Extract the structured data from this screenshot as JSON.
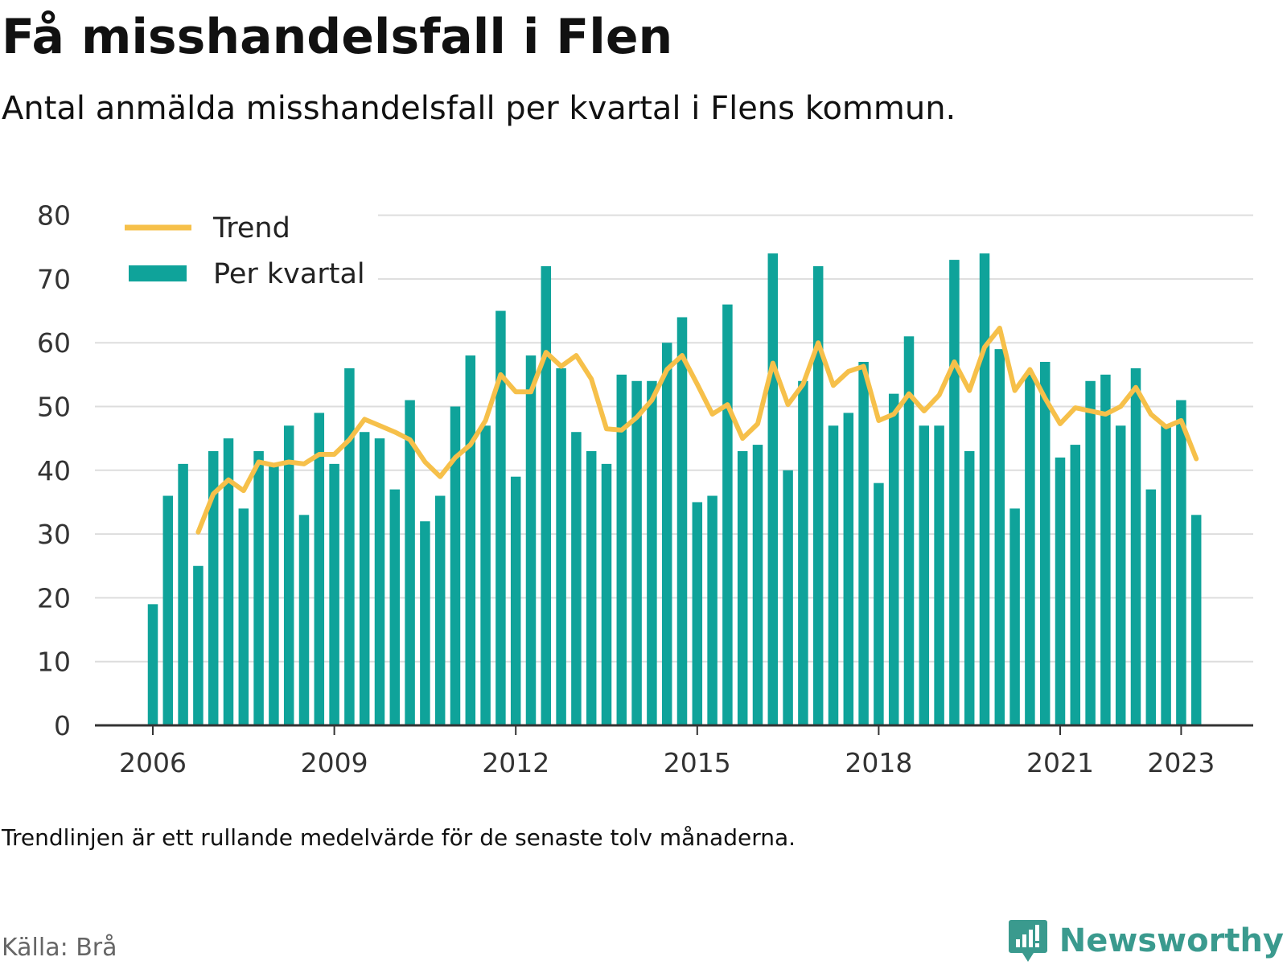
{
  "title": "Få misshandelsfall i Flen",
  "subtitle": "Antal anmälda misshandelsfall per kvartal i Flens kommun.",
  "note": "Trendlinjen är ett rullande medelvärde för de senaste tolv månaderna.",
  "source": "Källa: Brå",
  "brand": {
    "name": "Newsworthy",
    "icon": "newsworthy-logo-icon",
    "color": "#3a9a8e"
  },
  "chart_data": {
    "type": "bar",
    "title": "Få misshandelsfall i Flen",
    "ylim": [
      0,
      80
    ],
    "yticks": [
      0,
      10,
      20,
      30,
      40,
      50,
      60,
      70,
      80
    ],
    "xtick_labels": [
      "2006",
      "2009",
      "2012",
      "2015",
      "2018",
      "2021",
      "2023"
    ],
    "grid": true,
    "legend_placement": "top-left",
    "colors": {
      "bars": "#0fa39a",
      "trend": "#f6c04a",
      "grid": "#dddddd",
      "axis": "#333333"
    },
    "x_start": "2006 Q1",
    "series": [
      {
        "name": "Per kvartal",
        "type": "bar",
        "values": [
          19,
          36,
          41,
          25,
          43,
          45,
          34,
          43,
          41,
          47,
          33,
          49,
          41,
          56,
          46,
          45,
          37,
          51,
          32,
          36,
          50,
          58,
          47,
          65,
          39,
          58,
          72,
          56,
          46,
          43,
          41,
          55,
          54,
          54,
          60,
          64,
          35,
          36,
          66,
          43,
          44,
          74,
          40,
          54,
          72,
          47,
          49,
          57,
          38,
          52,
          61,
          47,
          47,
          73,
          43,
          74,
          59,
          34,
          55,
          57,
          42,
          44,
          54,
          55,
          47,
          56,
          37,
          47,
          51,
          33
        ]
      },
      {
        "name": "Trend",
        "type": "line",
        "values": [
          null,
          null,
          null,
          30.3,
          36.3,
          38.5,
          36.8,
          41.3,
          40.8,
          41.3,
          41.0,
          42.5,
          42.5,
          44.8,
          48.0,
          47.0,
          46.0,
          44.8,
          41.3,
          39.0,
          42.0,
          44.0,
          47.8,
          55.0,
          52.3,
          52.3,
          58.5,
          56.3,
          58.0,
          54.3,
          46.5,
          46.3,
          48.3,
          51.0,
          55.8,
          58.0,
          53.5,
          48.8,
          50.3,
          45.0,
          47.3,
          56.8,
          50.3,
          53.5,
          60.0,
          53.3,
          55.5,
          56.3,
          47.8,
          48.8,
          52.0,
          49.3,
          51.8,
          57.0,
          52.5,
          59.3,
          62.3,
          52.5,
          55.8,
          51.3,
          47.3,
          49.8,
          49.3,
          48.8,
          50.0,
          53.0,
          48.8,
          46.8,
          47.8,
          41.8
        ]
      }
    ]
  }
}
